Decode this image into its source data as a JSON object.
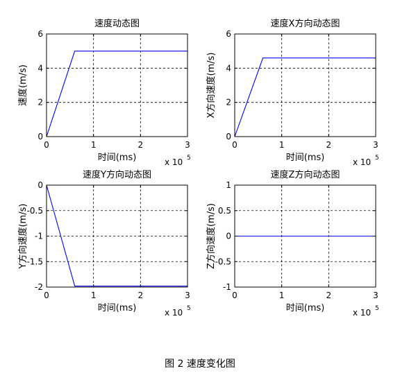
{
  "caption": "图 2  速度变化图",
  "chart_data": [
    {
      "type": "line",
      "title": "速度动态图",
      "xlabel": "时间(ms)",
      "ylabel": "速度(m/s)",
      "x_multiplier": "x 10",
      "x_exponent": "5",
      "xlim": [
        0,
        3
      ],
      "ylim": [
        0,
        6
      ],
      "xticks": [
        0,
        1,
        2,
        3
      ],
      "yticks": [
        0,
        2,
        4,
        6
      ],
      "xtick_labels": [
        "0",
        "1",
        "2",
        "3"
      ],
      "ytick_labels": [
        "0",
        "2",
        "4",
        "6"
      ],
      "grid": true,
      "line_color": "#0000ff",
      "series": [
        {
          "x": [
            0,
            0.6,
            3
          ],
          "y": [
            0,
            5,
            5
          ]
        }
      ]
    },
    {
      "type": "line",
      "title": "速度X方向动态图",
      "xlabel": "时间(ms)",
      "ylabel": "X方向速度(m/s)",
      "x_multiplier": "x 10",
      "x_exponent": "5",
      "xlim": [
        0,
        3
      ],
      "ylim": [
        0,
        6
      ],
      "xticks": [
        0,
        1,
        2,
        3
      ],
      "yticks": [
        0,
        2,
        4,
        6
      ],
      "xtick_labels": [
        "0",
        "1",
        "2",
        "3"
      ],
      "ytick_labels": [
        "0",
        "2",
        "4",
        "6"
      ],
      "grid": true,
      "line_color": "#0000ff",
      "series": [
        {
          "x": [
            0,
            0.6,
            3
          ],
          "y": [
            0,
            4.6,
            4.6
          ]
        }
      ]
    },
    {
      "type": "line",
      "title": "速度Y方向动态图",
      "xlabel": "时间(ms)",
      "ylabel": "Y方向速度(m/s)",
      "x_multiplier": "x 10",
      "x_exponent": "5",
      "xlim": [
        0,
        3
      ],
      "ylim": [
        -2,
        0
      ],
      "xticks": [
        0,
        1,
        2,
        3
      ],
      "yticks": [
        -2,
        -1.5,
        -1,
        -0.5,
        0
      ],
      "xtick_labels": [
        "0",
        "1",
        "2",
        "3"
      ],
      "ytick_labels": [
        "-2",
        "-1.5",
        "-1",
        "-0.5",
        "0"
      ],
      "grid": true,
      "line_color": "#0000ff",
      "series": [
        {
          "x": [
            0,
            0.6,
            3
          ],
          "y": [
            0,
            -1.98,
            -1.98
          ]
        }
      ]
    },
    {
      "type": "line",
      "title": "速度Z方向动态图",
      "xlabel": "时间(ms)",
      "ylabel": "Z方向速度(m/s)",
      "x_multiplier": "x 10",
      "x_exponent": "5",
      "xlim": [
        0,
        3
      ],
      "ylim": [
        -1,
        1
      ],
      "xticks": [
        0,
        1,
        2,
        3
      ],
      "yticks": [
        -1,
        -0.5,
        0,
        0.5,
        1
      ],
      "xtick_labels": [
        "0",
        "1",
        "2",
        "3"
      ],
      "ytick_labels": [
        "-1",
        "-0.5",
        "0",
        "0.5",
        "1"
      ],
      "grid": true,
      "line_color": "#0000ff",
      "series": [
        {
          "x": [
            0,
            3
          ],
          "y": [
            0,
            0
          ]
        }
      ]
    }
  ]
}
